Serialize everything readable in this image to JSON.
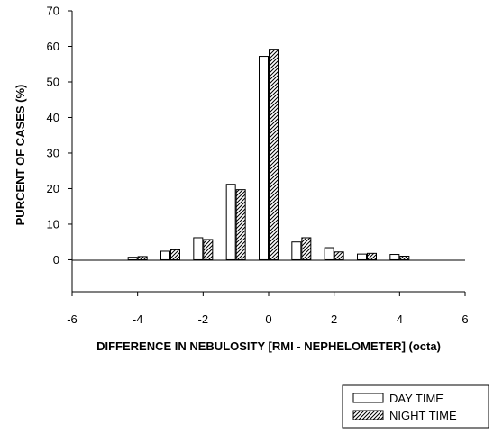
{
  "chart_data": {
    "type": "bar",
    "x": [
      -4,
      -3,
      -2,
      -1,
      0,
      1,
      2,
      3,
      4
    ],
    "series": [
      {
        "name": "DAY TIME",
        "values": [
          0.7,
          2.4,
          6.2,
          21.2,
          57.2,
          5.0,
          3.4,
          1.6,
          1.5
        ],
        "fill": "plain"
      },
      {
        "name": "NIGHT TIME",
        "values": [
          0.9,
          2.8,
          5.7,
          19.7,
          59.2,
          6.2,
          2.2,
          1.8,
          1.0
        ],
        "fill": "hatched"
      }
    ],
    "xlim": [
      -6,
      6
    ],
    "ylim": [
      -9,
      70
    ],
    "xticks": [
      "-6",
      "-4",
      "-2",
      "0",
      "2",
      "4",
      "6"
    ],
    "yticks": [
      "0",
      "10",
      "20",
      "30",
      "40",
      "50",
      "60",
      "70"
    ],
    "xlabel": "DIFFERENCE IN NEBULOSITY  [RMI - NEPHELOMETER] (octa)",
    "ylabel": "PURCENT OF CASES  (%)",
    "legend_position": "bottom-right",
    "grid": false,
    "colors": {
      "bar_fill": "#ffffff",
      "bar_stroke": "#000000",
      "hatch": "#000000"
    }
  }
}
